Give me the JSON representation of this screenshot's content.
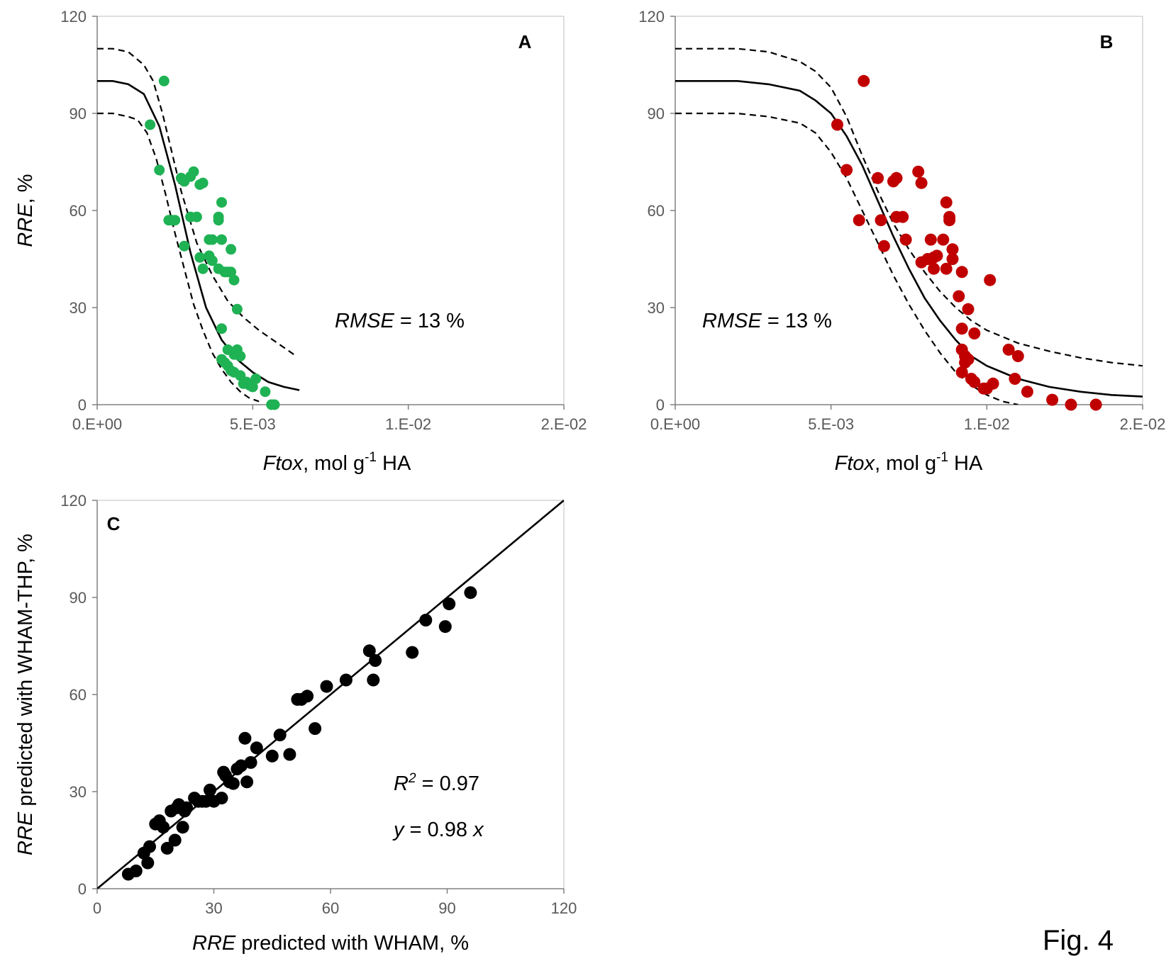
{
  "figure_label": "Fig. 4",
  "colors": {
    "A": "#1fb254",
    "B": "#c00000",
    "C": "#000000"
  },
  "chart_data": [
    {
      "id": "A",
      "type": "scatter",
      "panel_label": "A",
      "xlabel": {
        "italic": "Ftox",
        "text": ", mol g",
        "sup": "-1",
        "suffix": " HA"
      },
      "ylabel": {
        "italic": "RRE",
        "text": ", %"
      },
      "xlim": [
        0,
        0.015
      ],
      "ylim": [
        0,
        120
      ],
      "xticks": [
        0,
        0.005,
        0.01,
        0.015
      ],
      "xtick_labels": [
        "0.E+00",
        "5.E-03",
        "1.E-02",
        "2.E-02"
      ],
      "yticks": [
        0,
        30,
        60,
        90,
        120
      ],
      "ytick_labels": [
        "0",
        "30",
        "60",
        "90",
        "120"
      ],
      "annotation": {
        "italic": "RMSE",
        "text": " = 13 %"
      },
      "curves": [
        {
          "style": "solid",
          "x": [
            0.0,
            0.0005,
            0.001,
            0.0015,
            0.002,
            0.0025,
            0.003,
            0.0035,
            0.004,
            0.0045,
            0.005,
            0.0055,
            0.006,
            0.0065
          ],
          "y": [
            100,
            100,
            99,
            96,
            86,
            68,
            47,
            30,
            20,
            14,
            10,
            7,
            5.5,
            4.5
          ]
        },
        {
          "style": "dashed",
          "x": [
            0.0,
            0.0005,
            0.001,
            0.0015,
            0.0018,
            0.0021,
            0.0024,
            0.0027,
            0.0032,
            0.0037,
            0.0042,
            0.0047,
            0.0052,
            0.0058,
            0.0064
          ],
          "y": [
            110,
            110,
            109,
            105,
            100,
            90,
            78,
            66,
            50,
            40,
            32,
            27,
            23,
            19,
            15
          ]
        },
        {
          "style": "dashed",
          "x": [
            0.0,
            0.0005,
            0.001,
            0.0013,
            0.0016,
            0.0019,
            0.0022,
            0.0025,
            0.0028,
            0.0031,
            0.0034,
            0.0037,
            0.004,
            0.0043,
            0.0046,
            0.0049,
            0.0052
          ],
          "y": [
            90,
            90,
            89,
            88,
            84,
            76,
            65,
            53,
            42,
            31,
            23,
            16,
            11,
            7,
            4,
            2,
            1
          ]
        }
      ],
      "x": [
        0.00215,
        0.0017,
        0.002,
        0.0031,
        0.0033,
        0.0027,
        0.0028,
        0.003,
        0.0034,
        0.004,
        0.0024,
        0.0025,
        0.0023,
        0.003,
        0.0032,
        0.0039,
        0.0039,
        0.0028,
        0.0036,
        0.0037,
        0.004,
        0.0043,
        0.0042,
        0.0033,
        0.0034,
        0.0036,
        0.0037,
        0.0039,
        0.0041,
        0.0043,
        0.0044,
        0.0045,
        0.004,
        0.0042,
        0.0044,
        0.0045,
        0.0046,
        0.004,
        0.0041,
        0.0042,
        0.0043,
        0.0044,
        0.0046,
        0.0048,
        0.0047,
        0.0049,
        0.005,
        0.0051,
        0.0054,
        0.0056,
        0.0057
      ],
      "y": [
        100,
        86.5,
        72.5,
        72,
        68,
        70,
        69,
        70.5,
        68.5,
        62.5,
        57,
        57,
        57,
        58,
        58,
        57,
        58,
        49,
        51,
        51,
        51,
        48,
        41,
        45.5,
        42,
        46,
        44.5,
        42,
        41,
        41,
        38.5,
        29.5,
        23.5,
        17,
        15.5,
        17,
        15,
        14,
        13,
        12,
        10.5,
        10,
        9,
        7,
        6.5,
        6,
        5.5,
        8,
        4,
        0,
        0
      ]
    },
    {
      "id": "B",
      "type": "scatter",
      "panel_label": "B",
      "xlabel": {
        "italic": "Ftox",
        "text": ", mol g",
        "sup": "-1",
        "suffix": " HA"
      },
      "ylabel": null,
      "xlim": [
        0,
        0.015
      ],
      "ylim": [
        0,
        120
      ],
      "xticks": [
        0,
        0.005,
        0.01,
        0.015
      ],
      "xtick_labels": [
        "0.E+00",
        "5.E-03",
        "1.E-02",
        "2.E-02"
      ],
      "yticks": [
        0,
        30,
        60,
        90,
        120
      ],
      "ytick_labels": [
        "0",
        "30",
        "60",
        "90",
        "120"
      ],
      "annotation": {
        "italic": "RMSE",
        "text": " = 13 %"
      },
      "curves": [
        {
          "style": "solid",
          "x": [
            0.0,
            0.001,
            0.002,
            0.003,
            0.004,
            0.0045,
            0.005,
            0.0055,
            0.006,
            0.0065,
            0.007,
            0.0075,
            0.008,
            0.0085,
            0.009,
            0.0095,
            0.01,
            0.011,
            0.012,
            0.013,
            0.014,
            0.015
          ],
          "y": [
            100,
            100,
            100,
            99,
            97,
            94,
            90,
            83,
            74,
            63,
            52,
            42,
            33,
            26,
            20,
            15,
            12,
            8,
            5.5,
            4,
            3,
            2.5
          ]
        },
        {
          "style": "dashed",
          "x": [
            0.0,
            0.001,
            0.002,
            0.003,
            0.004,
            0.0045,
            0.005,
            0.0055,
            0.006,
            0.0065,
            0.007,
            0.0075,
            0.008,
            0.0085,
            0.009,
            0.0095,
            0.01,
            0.011,
            0.012,
            0.013,
            0.014,
            0.015
          ],
          "y": [
            110,
            110,
            110,
            109,
            106,
            103,
            98,
            89,
            77,
            66,
            56,
            48,
            41,
            35,
            30,
            26,
            23,
            19,
            16.5,
            14.5,
            13,
            12
          ]
        },
        {
          "style": "dashed",
          "x": [
            0.0,
            0.001,
            0.002,
            0.003,
            0.004,
            0.0045,
            0.005,
            0.0055,
            0.006,
            0.0065,
            0.007,
            0.0075,
            0.008,
            0.0085,
            0.009,
            0.0095,
            0.01,
            0.0105,
            0.011
          ],
          "y": [
            90,
            90,
            90,
            89,
            87,
            84,
            78,
            70,
            60,
            50,
            40,
            31,
            23,
            16,
            10,
            6,
            3,
            1,
            0
          ]
        }
      ],
      "x": [
        0.00605,
        0.0052,
        0.0055,
        0.0071,
        0.0078,
        0.0065,
        0.007,
        0.0071,
        0.0079,
        0.0087,
        0.0059,
        0.0066,
        0.0071,
        0.0073,
        0.0088,
        0.0088,
        0.0067,
        0.0074,
        0.0082,
        0.0086,
        0.0089,
        0.0079,
        0.0081,
        0.0083,
        0.0084,
        0.0089,
        0.0087,
        0.0083,
        0.0092,
        0.0101,
        0.0091,
        0.0094,
        0.0092,
        0.0096,
        0.0107,
        0.011,
        0.0092,
        0.0093,
        0.0094,
        0.0093,
        0.0092,
        0.0095,
        0.0096,
        0.01,
        0.0102,
        0.0099,
        0.0109,
        0.0113,
        0.0121,
        0.0127,
        0.0135
      ],
      "y": [
        100,
        86.5,
        72.5,
        70,
        72,
        70,
        69,
        70,
        68.5,
        62.5,
        57,
        57,
        58,
        58,
        57,
        58,
        49,
        51,
        51,
        51,
        48,
        44,
        45,
        45.5,
        46,
        45,
        42,
        42,
        41,
        38.5,
        33.5,
        29.5,
        23.5,
        22,
        17,
        15,
        17,
        15,
        14,
        13,
        10,
        8,
        7,
        5,
        6.5,
        5,
        8,
        4,
        1.5,
        0,
        0
      ]
    },
    {
      "id": "C",
      "type": "scatter",
      "panel_label": "C",
      "xlabel": {
        "italic": "RRE",
        "text": " predicted with WHAM, %"
      },
      "ylabel": {
        "italic": "RRE",
        "text": " predicted with WHAM-THP, %"
      },
      "xlim": [
        0,
        120
      ],
      "ylim": [
        0,
        120
      ],
      "xticks": [
        0,
        30,
        60,
        90,
        120
      ],
      "xtick_labels": [
        "0",
        "30",
        "60",
        "90",
        "120"
      ],
      "yticks": [
        0,
        30,
        60,
        90,
        120
      ],
      "ytick_labels": [
        "0",
        "30",
        "60",
        "90",
        "120"
      ],
      "annotations": [
        {
          "italic": "R",
          "sup": "2",
          "text": " = 0.97"
        },
        {
          "italic": "y",
          "text": " = 0.98 ",
          "italic2": "x"
        }
      ],
      "curves": [
        {
          "style": "solid",
          "x": [
            0,
            120
          ],
          "y": [
            0,
            120
          ]
        }
      ],
      "x": [
        8,
        10,
        12,
        13.5,
        13,
        15,
        16,
        17,
        18,
        19,
        20,
        20.5,
        21,
        22,
        22.5,
        23,
        25,
        26,
        27,
        28,
        29,
        30,
        32,
        32.5,
        33,
        34,
        35,
        36,
        37,
        38,
        38.5,
        39.5,
        41,
        45,
        47,
        49.5,
        51.5,
        52.5,
        54,
        56,
        59,
        64,
        70,
        71,
        71.5,
        81,
        84.5,
        89.5,
        90.5,
        96
      ],
      "y": [
        4.5,
        5.5,
        11,
        13,
        8,
        20,
        21,
        19,
        12.5,
        24,
        15,
        25,
        26,
        19,
        24,
        25,
        28,
        27,
        27,
        27,
        30.5,
        27,
        28,
        36,
        35,
        33,
        32.5,
        37,
        38,
        46.5,
        33,
        39,
        43.5,
        41,
        47.5,
        41.5,
        58.5,
        58.5,
        59.5,
        49.5,
        62.5,
        64.5,
        73.5,
        64.5,
        70.5,
        73,
        83,
        81,
        88,
        91.5
      ]
    }
  ]
}
